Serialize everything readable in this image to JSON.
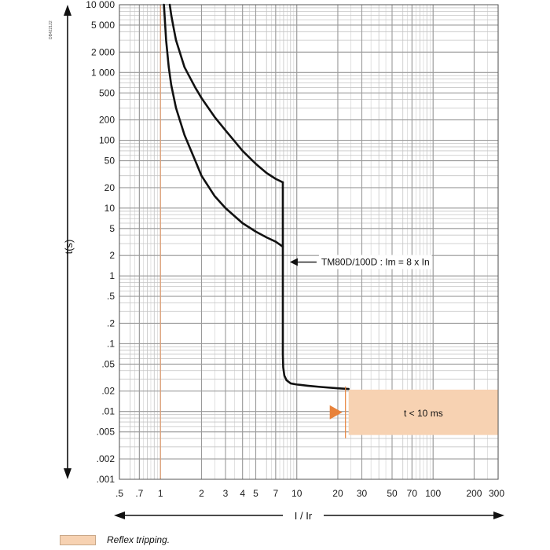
{
  "doc_id": "DB422122",
  "legend": {
    "reflex_label": "Reflex tripping."
  },
  "colors": {
    "grid": "#9a9a9a",
    "grid_minor": "#c4c4c4",
    "curve": "#111111",
    "reflex_zone": "#f7d2b2",
    "reflex_arrow": "#e8823a",
    "ir_line": "#e8a070"
  },
  "chart_data": {
    "type": "line",
    "title": "",
    "xlabel": "I / Ir",
    "ylabel": "t(s)",
    "x_scale": "log",
    "y_scale": "log",
    "xlim": [
      0.5,
      300
    ],
    "ylim": [
      0.001,
      10000
    ],
    "grid": true,
    "x_tick_labels": [
      ".5",
      ".7",
      "1",
      "2",
      "3",
      "4",
      "5",
      "7",
      "10",
      "20",
      "30",
      "50",
      "70",
      "100",
      "200",
      "300"
    ],
    "y_tick_labels": [
      "10 000",
      "5 000",
      "2 000",
      "1 000",
      "500",
      "200",
      "100",
      "50",
      "20",
      "10",
      "5",
      "2",
      "1",
      ".5",
      ".2",
      ".1",
      ".05",
      ".02",
      ".01",
      ".005",
      ".002",
      ".001"
    ],
    "series": [
      {
        "x": [
          1.06,
          1.1,
          1.15,
          1.2,
          1.3,
          1.5,
          1.8,
          2,
          2.5,
          3,
          4,
          5,
          6,
          7,
          7.9
        ],
        "y": [
          10000,
          3000,
          1200,
          650,
          300,
          120,
          50,
          30,
          15,
          10,
          6,
          4.5,
          3.7,
          3.2,
          2.7
        ]
      },
      {
        "x": [
          1.17,
          1.2,
          1.25,
          1.3,
          1.5,
          1.8,
          2,
          2.5,
          3,
          4,
          5,
          6,
          7,
          7.9
        ],
        "y": [
          10000,
          7000,
          4500,
          3000,
          1200,
          600,
          420,
          220,
          140,
          70,
          45,
          33,
          27,
          24
        ]
      },
      {
        "x": [
          7.9,
          7.9,
          7.95,
          8.1,
          8.4,
          9,
          10,
          12,
          15,
          20,
          24
        ],
        "y": [
          24,
          0.07,
          0.045,
          0.034,
          0.029,
          0.026,
          0.025,
          0.024,
          0.023,
          0.022,
          0.0215
        ]
      }
    ],
    "annotations": [
      {
        "text": "TM80D/100D : Im = 8 x In",
        "x": 8,
        "y": 1.6
      },
      {
        "text": "t < 10 ms",
        "x": 50,
        "y": 0.01
      }
    ],
    "reflex_zone": {
      "x_start": 24,
      "x_end": 300,
      "y_low": 0.0045,
      "y_high": 0.021
    },
    "ir_marker_x": 1
  }
}
